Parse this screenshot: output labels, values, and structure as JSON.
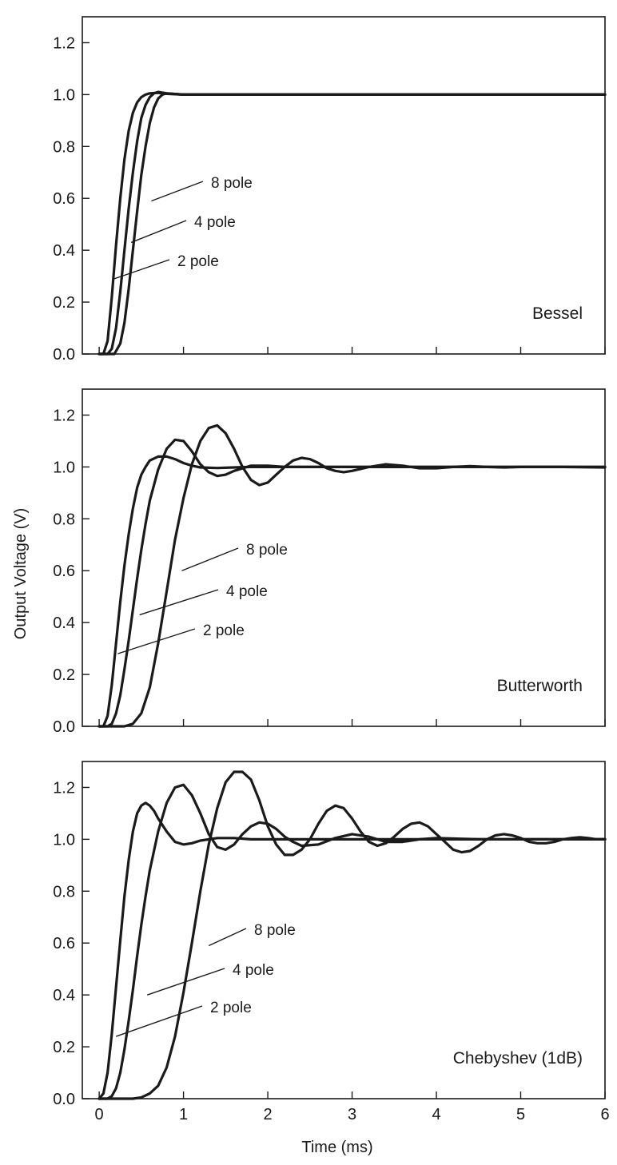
{
  "chart_data": {
    "type": "line",
    "xlabel": "Time (ms)",
    "ylabel": "Output Voltage (V)",
    "xlim": [
      -0.2,
      6
    ],
    "x_ticks": [
      0,
      1,
      2,
      3,
      4,
      5,
      6
    ],
    "ylim": [
      0,
      1.3
    ],
    "y_ticks": [
      "0.0",
      "0.2",
      "0.4",
      "0.6",
      "0.8",
      "1.0",
      "1.2"
    ],
    "grid": false,
    "legend": "none",
    "panels": [
      {
        "title": "Bessel",
        "series": [
          {
            "name": "2 pole",
            "x": [
              0,
              0.05,
              0.1,
              0.15,
              0.2,
              0.25,
              0.3,
              0.35,
              0.4,
              0.45,
              0.5,
              0.55,
              0.6,
              0.7,
              0.8,
              1.0,
              6.0
            ],
            "y": [
              0,
              0,
              0.05,
              0.22,
              0.42,
              0.6,
              0.75,
              0.86,
              0.93,
              0.97,
              0.99,
              1.0,
              1.005,
              1.007,
              1.003,
              1.0,
              1.0
            ]
          },
          {
            "name": "4 pole",
            "x": [
              0,
              0.1,
              0.15,
              0.2,
              0.25,
              0.3,
              0.35,
              0.4,
              0.45,
              0.5,
              0.55,
              0.6,
              0.65,
              0.7,
              0.8,
              1.0,
              6.0
            ],
            "y": [
              0,
              0,
              0.02,
              0.1,
              0.24,
              0.4,
              0.56,
              0.7,
              0.82,
              0.91,
              0.96,
              0.99,
              1.005,
              1.01,
              1.005,
              1.0,
              1.0
            ]
          },
          {
            "name": "8 pole",
            "x": [
              0,
              0.18,
              0.25,
              0.3,
              0.35,
              0.4,
              0.45,
              0.5,
              0.55,
              0.6,
              0.65,
              0.7,
              0.75,
              0.8,
              0.9,
              1.0,
              6.0
            ],
            "y": [
              0,
              0,
              0.04,
              0.12,
              0.25,
              0.4,
              0.55,
              0.69,
              0.8,
              0.89,
              0.95,
              0.985,
              1.0,
              1.005,
              1.002,
              1.0,
              1.0
            ]
          }
        ]
      },
      {
        "title": "Butterworth",
        "series": [
          {
            "name": "2 pole",
            "x": [
              0,
              0.05,
              0.1,
              0.15,
              0.2,
              0.25,
              0.3,
              0.35,
              0.4,
              0.45,
              0.5,
              0.55,
              0.6,
              0.7,
              0.8,
              0.9,
              1.0,
              1.1,
              1.2,
              1.4,
              1.6,
              1.8,
              2.0,
              6.0
            ],
            "y": [
              0,
              0,
              0.04,
              0.16,
              0.32,
              0.48,
              0.62,
              0.74,
              0.84,
              0.92,
              0.97,
              1.0,
              1.025,
              1.04,
              1.04,
              1.03,
              1.015,
              1.005,
              0.998,
              0.996,
              0.998,
              1.0,
              1.0,
              1.0
            ]
          },
          {
            "name": "4 pole",
            "x": [
              0,
              0.1,
              0.15,
              0.2,
              0.25,
              0.3,
              0.35,
              0.4,
              0.45,
              0.5,
              0.55,
              0.6,
              0.7,
              0.8,
              0.9,
              1.0,
              1.1,
              1.2,
              1.3,
              1.4,
              1.5,
              1.6,
              1.8,
              2.0,
              2.2,
              2.5,
              6.0
            ],
            "y": [
              0,
              0,
              0.01,
              0.05,
              0.12,
              0.22,
              0.33,
              0.45,
              0.57,
              0.68,
              0.78,
              0.87,
              0.99,
              1.07,
              1.105,
              1.1,
              1.06,
              1.01,
              0.98,
              0.965,
              0.97,
              0.985,
              1.005,
              1.005,
              1.0,
              1.0,
              1.0
            ]
          },
          {
            "name": "8 pole",
            "x": [
              0,
              0.3,
              0.4,
              0.5,
              0.6,
              0.7,
              0.8,
              0.9,
              1.0,
              1.1,
              1.2,
              1.3,
              1.4,
              1.5,
              1.6,
              1.7,
              1.8,
              1.9,
              2.0,
              2.1,
              2.2,
              2.3,
              2.4,
              2.5,
              2.6,
              2.7,
              2.8,
              2.9,
              3.0,
              3.2,
              3.4,
              3.6,
              3.8,
              4.0,
              4.2,
              4.4,
              4.6,
              4.8,
              5.0,
              5.5,
              6.0
            ],
            "y": [
              0,
              0,
              0.01,
              0.05,
              0.15,
              0.32,
              0.52,
              0.72,
              0.88,
              1.01,
              1.1,
              1.15,
              1.16,
              1.13,
              1.07,
              1.0,
              0.95,
              0.93,
              0.94,
              0.97,
              1.0,
              1.025,
              1.035,
              1.03,
              1.015,
              0.995,
              0.985,
              0.98,
              0.985,
              1.0,
              1.01,
              1.005,
              0.995,
              0.995,
              1.0,
              1.003,
              1.0,
              0.998,
              1.0,
              1.0,
              0.998
            ]
          }
        ]
      },
      {
        "title": "Chebyshev (1dB)",
        "series": [
          {
            "name": "2 pole",
            "x": [
              0,
              0.05,
              0.1,
              0.15,
              0.2,
              0.25,
              0.3,
              0.35,
              0.4,
              0.45,
              0.5,
              0.55,
              0.6,
              0.65,
              0.7,
              0.8,
              0.9,
              1.0,
              1.1,
              1.2,
              1.4,
              1.6,
              1.8,
              2.0,
              2.5,
              6.0
            ],
            "y": [
              0,
              0.02,
              0.1,
              0.25,
              0.43,
              0.61,
              0.78,
              0.92,
              1.03,
              1.1,
              1.13,
              1.14,
              1.13,
              1.11,
              1.08,
              1.03,
              0.99,
              0.98,
              0.985,
              0.995,
              1.005,
              1.005,
              1.0,
              1.0,
              1.0,
              1.0
            ]
          },
          {
            "name": "4 pole",
            "x": [
              0,
              0.1,
              0.15,
              0.2,
              0.25,
              0.3,
              0.35,
              0.4,
              0.45,
              0.5,
              0.55,
              0.6,
              0.7,
              0.8,
              0.9,
              1.0,
              1.1,
              1.2,
              1.3,
              1.4,
              1.5,
              1.6,
              1.7,
              1.8,
              1.9,
              2.0,
              2.1,
              2.2,
              2.3,
              2.4,
              2.6,
              2.8,
              3.0,
              3.2,
              3.4,
              3.6,
              3.8,
              4.0,
              4.5,
              5.0,
              5.5,
              6.0
            ],
            "y": [
              0,
              0,
              0.01,
              0.04,
              0.1,
              0.19,
              0.3,
              0.42,
              0.55,
              0.67,
              0.78,
              0.88,
              1.03,
              1.14,
              1.2,
              1.21,
              1.17,
              1.1,
              1.02,
              0.97,
              0.96,
              0.98,
              1.02,
              1.05,
              1.065,
              1.06,
              1.04,
              1.01,
              0.99,
              0.975,
              0.98,
              1.005,
              1.02,
              1.01,
              0.99,
              0.99,
              1.0,
              1.005,
              1.0,
              1.0,
              1.0,
              1.0
            ]
          },
          {
            "name": "8 pole",
            "x": [
              0,
              0.4,
              0.5,
              0.6,
              0.7,
              0.8,
              0.9,
              1.0,
              1.1,
              1.2,
              1.3,
              1.4,
              1.5,
              1.6,
              1.7,
              1.8,
              1.9,
              2.0,
              2.1,
              2.2,
              2.3,
              2.4,
              2.5,
              2.6,
              2.7,
              2.8,
              2.9,
              3.0,
              3.1,
              3.2,
              3.3,
              3.4,
              3.5,
              3.6,
              3.7,
              3.8,
              3.9,
              4.0,
              4.1,
              4.2,
              4.3,
              4.4,
              4.5,
              4.6,
              4.7,
              4.8,
              4.9,
              5.0,
              5.1,
              5.2,
              5.3,
              5.4,
              5.5,
              5.6,
              5.7,
              5.8,
              5.9,
              6.0
            ],
            "y": [
              0,
              0,
              0.005,
              0.02,
              0.05,
              0.12,
              0.24,
              0.41,
              0.6,
              0.8,
              0.98,
              1.12,
              1.22,
              1.26,
              1.26,
              1.23,
              1.15,
              1.05,
              0.98,
              0.94,
              0.94,
              0.96,
              1.0,
              1.06,
              1.11,
              1.13,
              1.12,
              1.08,
              1.03,
              0.99,
              0.975,
              0.985,
              1.01,
              1.04,
              1.06,
              1.065,
              1.05,
              1.02,
              0.99,
              0.96,
              0.95,
              0.955,
              0.975,
              1.0,
              1.015,
              1.02,
              1.015,
              1.005,
              0.99,
              0.985,
              0.985,
              0.99,
              1.0,
              1.005,
              1.008,
              1.005,
              1.0,
              1.0
            ]
          }
        ]
      }
    ]
  }
}
